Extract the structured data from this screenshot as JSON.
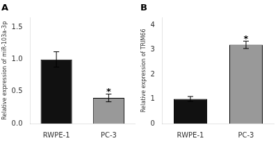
{
  "chart_data": [
    {
      "type": "bar",
      "title": "A",
      "categories": [
        "RWPE-1",
        "PC-3"
      ],
      "values": [
        1.0,
        0.4
      ],
      "errors": [
        0.12,
        0.06
      ],
      "colors": [
        "#111111",
        "#999999"
      ],
      "ylabel": "Relative expression of miR-103a-3p",
      "ylim": [
        0,
        1.65
      ],
      "yticks": [
        {
          "value": 0.0,
          "label": "0.0"
        },
        0.5,
        {
          "value": 1.0,
          "label": "1.0"
        },
        1.5
      ],
      "grid": false,
      "annotations": [
        {
          "text": "*",
          "category": "PC-3"
        }
      ]
    },
    {
      "type": "bar",
      "title": "B",
      "categories": [
        "RWPE-1",
        "PC-3"
      ],
      "values": [
        1.0,
        3.2
      ],
      "errors": [
        0.1,
        0.15
      ],
      "colors": [
        "#111111",
        "#999999"
      ],
      "ylabel": "Relative expression of TRIM66",
      "ylim": [
        0,
        4.3
      ],
      "yticks": [
        0,
        1,
        2,
        3,
        4
      ],
      "grid": false,
      "annotations": [
        {
          "text": "*",
          "category": "PC-3"
        }
      ]
    }
  ]
}
